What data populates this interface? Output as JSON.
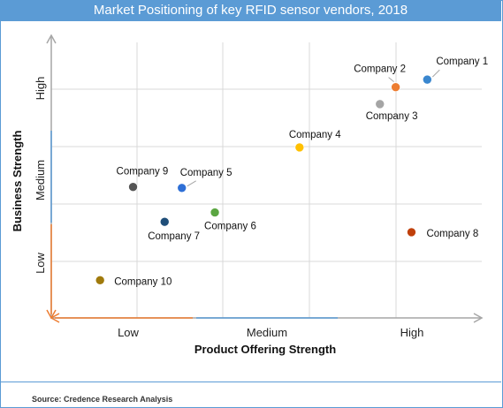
{
  "title": "Market Positioning of key RFID sensor vendors, 2018",
  "source": "Source: Credence Research Analysis",
  "chart_data": {
    "type": "scatter",
    "xlabel": "Product Offering Strength",
    "ylabel": "Business Strength",
    "x_tick_labels": [
      "Low",
      "Medium",
      "High"
    ],
    "y_tick_labels": [
      "Low",
      "Medium",
      "High"
    ],
    "xlim": [
      0,
      3
    ],
    "ylim": [
      0,
      3
    ],
    "grid": true,
    "points": [
      {
        "label": "Company 1",
        "x": 2.62,
        "y": 2.53,
        "color": "#3a87cf"
      },
      {
        "label": "Company 2",
        "x": 2.4,
        "y": 2.45,
        "color": "#ed7d31"
      },
      {
        "label": "Company 3",
        "x": 2.29,
        "y": 2.27,
        "color": "#a5a5a5"
      },
      {
        "label": "Company 4",
        "x": 1.73,
        "y": 1.81,
        "color": "#ffc000"
      },
      {
        "label": "Company 5",
        "x": 0.91,
        "y": 1.38,
        "color": "#2e6fd6"
      },
      {
        "label": "Company 6",
        "x": 1.14,
        "y": 1.12,
        "color": "#5ba642"
      },
      {
        "label": "Company 7",
        "x": 0.79,
        "y": 1.02,
        "color": "#1f4e79"
      },
      {
        "label": "Company 8",
        "x": 2.51,
        "y": 0.91,
        "color": "#c0400b"
      },
      {
        "label": "Company 9",
        "x": 0.57,
        "y": 1.39,
        "color": "#555555"
      },
      {
        "label": "Company 10",
        "x": 0.34,
        "y": 0.4,
        "color": "#a07a0c"
      }
    ]
  }
}
